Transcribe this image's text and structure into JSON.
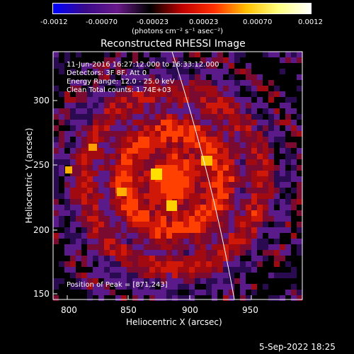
{
  "colorbar": {
    "tick_labels": [
      "-0.0012",
      "-0.00070",
      "-0.00023",
      "0.00023",
      "0.00070",
      "0.0012"
    ],
    "units": "(photons cm⁻² s⁻¹ asec⁻²)"
  },
  "title": "Reconstructed RHESSI Image",
  "annotations": {
    "time_range": "11-Jun-2016 16:27:12.000 to 16:33:12.000",
    "detectors": "Detectors: 3F 8F, Att 0",
    "energy_range": "Energy Range: 12.0 - 25.0 keV",
    "algorithm": "Clean    Total counts: 1.74E+03",
    "peak": "Position of Peak = [871,243]"
  },
  "axes": {
    "xlabel": "Heliocentric X (arcsec)",
    "ylabel": "Heliocentric Y (arcsec)",
    "xticks": [
      "800",
      "850",
      "900",
      "950"
    ],
    "yticks": [
      "150",
      "200",
      "250",
      "300"
    ]
  },
  "footer": {
    "timestamp": "5-Sep-2022 18:25"
  },
  "colors": {
    "background": "#000000",
    "foreground": "#ffffff",
    "colormap": [
      "#0000ff",
      "#3a0a8a",
      "#6a1a8a",
      "#000000",
      "#c00000",
      "#ff3000",
      "#ffc000",
      "#ffff80",
      "#ffffff"
    ]
  }
}
